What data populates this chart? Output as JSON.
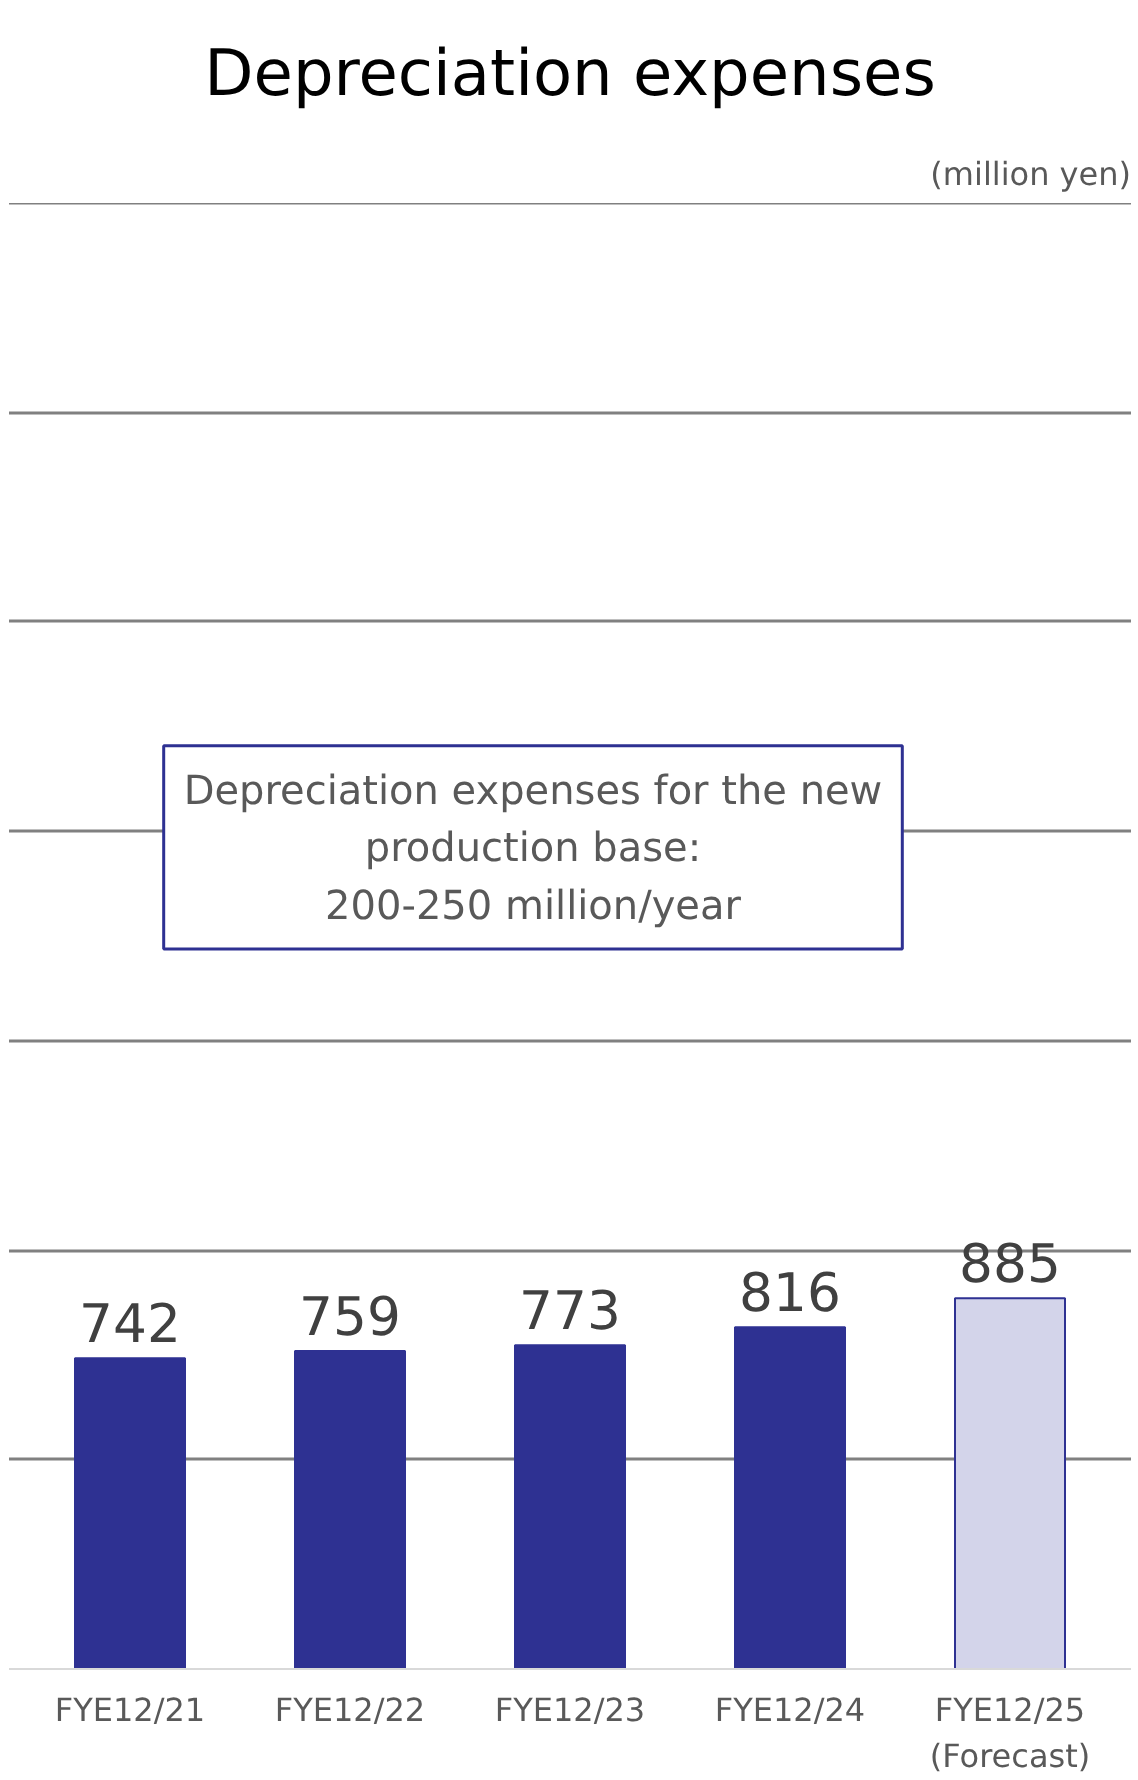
{
  "chart_data": {
    "type": "bar",
    "title": "Depreciation expenses",
    "categories": [
      "FYE12/21",
      "FYE12/22",
      "FYE12/23",
      "FYE12/24",
      "FYE12/25\n(Forecast)"
    ],
    "values": [
      742,
      759,
      773,
      816,
      885
    ],
    "colors": [
      "#2e3192",
      "#2e3192",
      "#2e3192",
      "#2e3192",
      "#d3d4ea"
    ],
    "data_labels": true,
    "ylim": [
      0,
      3500
    ],
    "yticks": [
      {
        "value": 0,
        "label": null
      },
      {
        "value": 500,
        "label": null
      },
      {
        "value": 1000,
        "label": null
      },
      {
        "value": 1500,
        "label": null
      },
      {
        "value": 2000,
        "label": null
      },
      {
        "value": 2500,
        "label": null
      },
      {
        "value": 3000,
        "label": null
      },
      {
        "value": 3500,
        "label": null
      }
    ],
    "tick_labels": "x",
    "grid": "y",
    "annotations": [
      "(million yen)",
      "Depreciation expenses for the new\nproduction base:\n200-250 million/year"
    ]
  }
}
